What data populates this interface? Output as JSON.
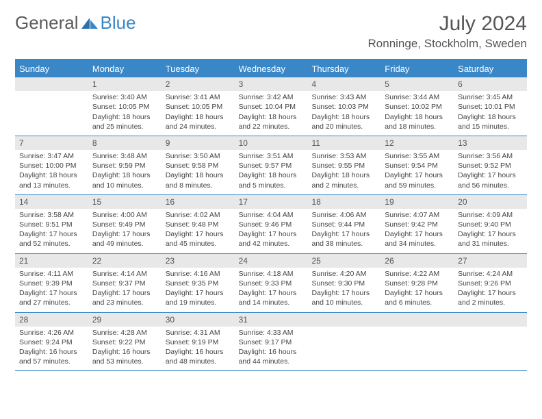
{
  "logo": {
    "text1": "General",
    "text2": "Blue"
  },
  "title": "July 2024",
  "location": "Ronninge, Stockholm, Sweden",
  "colors": {
    "brand_blue": "#3a87c8",
    "header_bg": "#3a87c8",
    "header_text": "#ffffff",
    "day_band_bg": "#e8e8e8",
    "text": "#444444",
    "background": "#ffffff"
  },
  "typography": {
    "title_fontsize": 30,
    "location_fontsize": 17,
    "header_fontsize": 13,
    "daynum_fontsize": 12,
    "body_fontsize": 10.5
  },
  "day_headers": [
    "Sunday",
    "Monday",
    "Tuesday",
    "Wednesday",
    "Thursday",
    "Friday",
    "Saturday"
  ],
  "weeks": [
    [
      {
        "n": "",
        "sunrise": "",
        "sunset": "",
        "daylight": ""
      },
      {
        "n": "1",
        "sunrise": "Sunrise: 3:40 AM",
        "sunset": "Sunset: 10:05 PM",
        "daylight": "Daylight: 18 hours and 25 minutes."
      },
      {
        "n": "2",
        "sunrise": "Sunrise: 3:41 AM",
        "sunset": "Sunset: 10:05 PM",
        "daylight": "Daylight: 18 hours and 24 minutes."
      },
      {
        "n": "3",
        "sunrise": "Sunrise: 3:42 AM",
        "sunset": "Sunset: 10:04 PM",
        "daylight": "Daylight: 18 hours and 22 minutes."
      },
      {
        "n": "4",
        "sunrise": "Sunrise: 3:43 AM",
        "sunset": "Sunset: 10:03 PM",
        "daylight": "Daylight: 18 hours and 20 minutes."
      },
      {
        "n": "5",
        "sunrise": "Sunrise: 3:44 AM",
        "sunset": "Sunset: 10:02 PM",
        "daylight": "Daylight: 18 hours and 18 minutes."
      },
      {
        "n": "6",
        "sunrise": "Sunrise: 3:45 AM",
        "sunset": "Sunset: 10:01 PM",
        "daylight": "Daylight: 18 hours and 15 minutes."
      }
    ],
    [
      {
        "n": "7",
        "sunrise": "Sunrise: 3:47 AM",
        "sunset": "Sunset: 10:00 PM",
        "daylight": "Daylight: 18 hours and 13 minutes."
      },
      {
        "n": "8",
        "sunrise": "Sunrise: 3:48 AM",
        "sunset": "Sunset: 9:59 PM",
        "daylight": "Daylight: 18 hours and 10 minutes."
      },
      {
        "n": "9",
        "sunrise": "Sunrise: 3:50 AM",
        "sunset": "Sunset: 9:58 PM",
        "daylight": "Daylight: 18 hours and 8 minutes."
      },
      {
        "n": "10",
        "sunrise": "Sunrise: 3:51 AM",
        "sunset": "Sunset: 9:57 PM",
        "daylight": "Daylight: 18 hours and 5 minutes."
      },
      {
        "n": "11",
        "sunrise": "Sunrise: 3:53 AM",
        "sunset": "Sunset: 9:55 PM",
        "daylight": "Daylight: 18 hours and 2 minutes."
      },
      {
        "n": "12",
        "sunrise": "Sunrise: 3:55 AM",
        "sunset": "Sunset: 9:54 PM",
        "daylight": "Daylight: 17 hours and 59 minutes."
      },
      {
        "n": "13",
        "sunrise": "Sunrise: 3:56 AM",
        "sunset": "Sunset: 9:52 PM",
        "daylight": "Daylight: 17 hours and 56 minutes."
      }
    ],
    [
      {
        "n": "14",
        "sunrise": "Sunrise: 3:58 AM",
        "sunset": "Sunset: 9:51 PM",
        "daylight": "Daylight: 17 hours and 52 minutes."
      },
      {
        "n": "15",
        "sunrise": "Sunrise: 4:00 AM",
        "sunset": "Sunset: 9:49 PM",
        "daylight": "Daylight: 17 hours and 49 minutes."
      },
      {
        "n": "16",
        "sunrise": "Sunrise: 4:02 AM",
        "sunset": "Sunset: 9:48 PM",
        "daylight": "Daylight: 17 hours and 45 minutes."
      },
      {
        "n": "17",
        "sunrise": "Sunrise: 4:04 AM",
        "sunset": "Sunset: 9:46 PM",
        "daylight": "Daylight: 17 hours and 42 minutes."
      },
      {
        "n": "18",
        "sunrise": "Sunrise: 4:06 AM",
        "sunset": "Sunset: 9:44 PM",
        "daylight": "Daylight: 17 hours and 38 minutes."
      },
      {
        "n": "19",
        "sunrise": "Sunrise: 4:07 AM",
        "sunset": "Sunset: 9:42 PM",
        "daylight": "Daylight: 17 hours and 34 minutes."
      },
      {
        "n": "20",
        "sunrise": "Sunrise: 4:09 AM",
        "sunset": "Sunset: 9:40 PM",
        "daylight": "Daylight: 17 hours and 31 minutes."
      }
    ],
    [
      {
        "n": "21",
        "sunrise": "Sunrise: 4:11 AM",
        "sunset": "Sunset: 9:39 PM",
        "daylight": "Daylight: 17 hours and 27 minutes."
      },
      {
        "n": "22",
        "sunrise": "Sunrise: 4:14 AM",
        "sunset": "Sunset: 9:37 PM",
        "daylight": "Daylight: 17 hours and 23 minutes."
      },
      {
        "n": "23",
        "sunrise": "Sunrise: 4:16 AM",
        "sunset": "Sunset: 9:35 PM",
        "daylight": "Daylight: 17 hours and 19 minutes."
      },
      {
        "n": "24",
        "sunrise": "Sunrise: 4:18 AM",
        "sunset": "Sunset: 9:33 PM",
        "daylight": "Daylight: 17 hours and 14 minutes."
      },
      {
        "n": "25",
        "sunrise": "Sunrise: 4:20 AM",
        "sunset": "Sunset: 9:30 PM",
        "daylight": "Daylight: 17 hours and 10 minutes."
      },
      {
        "n": "26",
        "sunrise": "Sunrise: 4:22 AM",
        "sunset": "Sunset: 9:28 PM",
        "daylight": "Daylight: 17 hours and 6 minutes."
      },
      {
        "n": "27",
        "sunrise": "Sunrise: 4:24 AM",
        "sunset": "Sunset: 9:26 PM",
        "daylight": "Daylight: 17 hours and 2 minutes."
      }
    ],
    [
      {
        "n": "28",
        "sunrise": "Sunrise: 4:26 AM",
        "sunset": "Sunset: 9:24 PM",
        "daylight": "Daylight: 16 hours and 57 minutes."
      },
      {
        "n": "29",
        "sunrise": "Sunrise: 4:28 AM",
        "sunset": "Sunset: 9:22 PM",
        "daylight": "Daylight: 16 hours and 53 minutes."
      },
      {
        "n": "30",
        "sunrise": "Sunrise: 4:31 AM",
        "sunset": "Sunset: 9:19 PM",
        "daylight": "Daylight: 16 hours and 48 minutes."
      },
      {
        "n": "31",
        "sunrise": "Sunrise: 4:33 AM",
        "sunset": "Sunset: 9:17 PM",
        "daylight": "Daylight: 16 hours and 44 minutes."
      },
      {
        "n": "",
        "sunrise": "",
        "sunset": "",
        "daylight": ""
      },
      {
        "n": "",
        "sunrise": "",
        "sunset": "",
        "daylight": ""
      },
      {
        "n": "",
        "sunrise": "",
        "sunset": "",
        "daylight": ""
      }
    ]
  ]
}
